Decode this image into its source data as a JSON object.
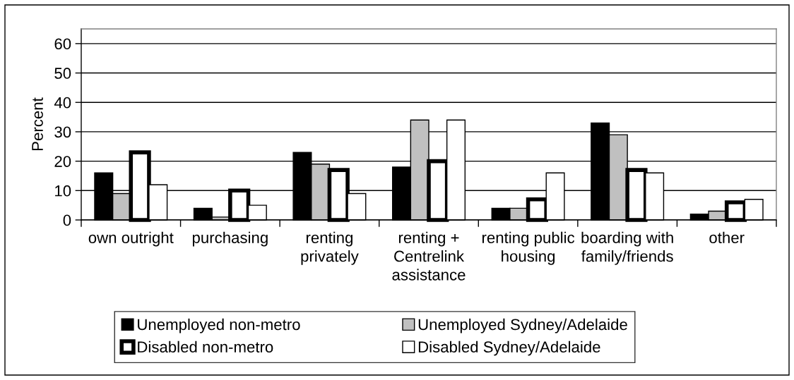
{
  "chart_data": {
    "type": "bar",
    "ylabel": "Percent",
    "categories": [
      "own outright",
      "purchasing",
      "renting\nprivately",
      "renting +\nCentrelink\nassistance",
      "renting public\nhousing",
      "boarding with\nfamily/friends",
      "other"
    ],
    "series": [
      {
        "name": "Unemployed non-metro",
        "color": "#000000",
        "values": [
          16,
          4,
          23,
          18,
          4,
          33,
          2
        ]
      },
      {
        "name": "Unemployed Sydney/Adelaide",
        "color": "#c0c0c0",
        "values": [
          9,
          1,
          19,
          34,
          4,
          29,
          3
        ]
      },
      {
        "name": "Disabled non-metro",
        "color": "#ffffff",
        "values": [
          23,
          10,
          17,
          20,
          7,
          17,
          6
        ]
      },
      {
        "name": "Disabled Sydney/Adelaide",
        "color": "#ffffff",
        "values": [
          12,
          5,
          9,
          34,
          16,
          16,
          7
        ]
      }
    ],
    "ylim": [
      0,
      65
    ],
    "yticks": [
      0,
      10,
      20,
      30,
      40,
      50,
      60
    ],
    "grid": "y",
    "legend": "bottom"
  }
}
